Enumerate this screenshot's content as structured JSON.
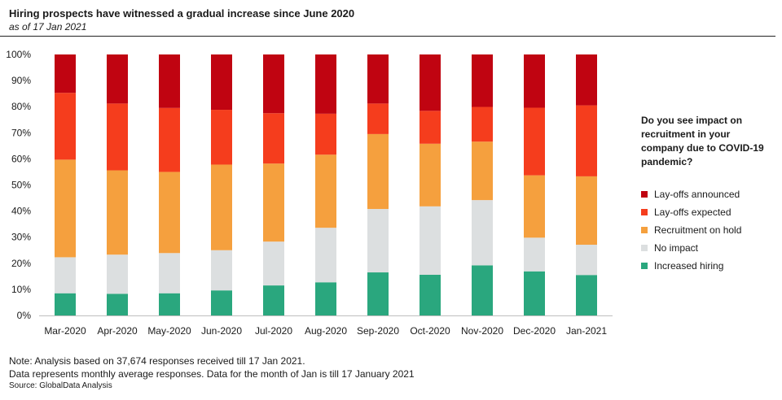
{
  "header": {
    "title": "Hiring prospects have witnessed a gradual increase since June 2020",
    "subtitle": "as of 17 Jan 2021"
  },
  "legend": {
    "title": "Do you see impact on recruitment in your company due to COVID-19 pandemic?"
  },
  "footer": {
    "note1": "Note: Analysis based on 37,674 responses received till 17 Jan 2021.",
    "note2": "Data represents monthly average responses. Data for the month of Jan is till 17 January 2021",
    "source": "Source: GlobalData Analysis"
  },
  "chart_data": {
    "type": "bar",
    "stacked": true,
    "percent": true,
    "categories": [
      "Mar-2020",
      "Apr-2020",
      "May-2020",
      "Jun-2020",
      "Jul-2020",
      "Aug-2020",
      "Sep-2020",
      "Oct-2020",
      "Nov-2020",
      "Dec-2020",
      "Jan-2021"
    ],
    "ylim": [
      0,
      100
    ],
    "yticks": [
      "0%",
      "10%",
      "20%",
      "30%",
      "40%",
      "50%",
      "60%",
      "70%",
      "80%",
      "90%",
      "100%"
    ],
    "grid": false,
    "legend_position": "right",
    "series": [
      {
        "name": "Increased hiring",
        "color": "#2aa77e",
        "values": [
          8.5,
          8.3,
          8.5,
          9.6,
          11.5,
          12.7,
          16.5,
          15.6,
          19.2,
          16.9,
          15.5
        ]
      },
      {
        "name": "No impact",
        "color": "#dcdfe0",
        "values": [
          13.8,
          15.0,
          15.4,
          15.4,
          16.8,
          20.9,
          24.3,
          26.2,
          25.0,
          12.9,
          11.6
        ]
      },
      {
        "name": "Recruitment on hold",
        "color": "#f5a03e",
        "values": [
          37.4,
          32.3,
          31.1,
          32.8,
          29.9,
          28.0,
          28.7,
          24.0,
          22.4,
          23.9,
          26.2
        ]
      },
      {
        "name": "Lay-offs expected",
        "color": "#f53d1d",
        "values": [
          25.6,
          25.6,
          24.5,
          21.0,
          19.3,
          15.7,
          11.7,
          12.6,
          13.3,
          25.9,
          27.2
        ]
      },
      {
        "name": "Lay-offs announced",
        "color": "#c00411",
        "values": [
          14.7,
          18.8,
          20.5,
          21.2,
          22.5,
          22.7,
          18.8,
          21.6,
          20.1,
          20.4,
          19.5
        ]
      }
    ],
    "legend_order": [
      "Lay-offs announced",
      "Lay-offs expected",
      "Recruitment on hold",
      "No impact",
      "Increased hiring"
    ]
  }
}
